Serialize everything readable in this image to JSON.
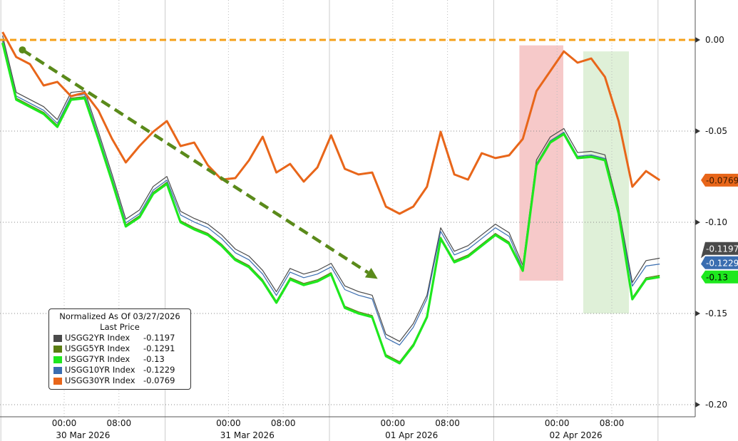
{
  "chart_data": {
    "type": "line",
    "title": "",
    "y_axis": {
      "position": "right",
      "ticks": [
        0.0,
        -0.05,
        -0.1,
        -0.15,
        -0.2
      ],
      "tick_labels": [
        "0.00",
        "-0.05",
        "-0.10",
        "-0.15",
        "-0.20"
      ],
      "ylim": [
        -0.205,
        0.01
      ]
    },
    "x_axis": {
      "time_labels": [
        {
          "t": "2026-03-30 00:00",
          "label": "00:00"
        },
        {
          "t": "2026-03-30 08:00",
          "label": "08:00"
        },
        {
          "t": "2026-03-31 00:00",
          "label": "00:00"
        },
        {
          "t": "2026-03-31 08:00",
          "label": "08:00"
        },
        {
          "t": "2026-04-01 00:00",
          "label": "00:00"
        },
        {
          "t": "2026-04-01 08:00",
          "label": "08:00"
        },
        {
          "t": "2026-04-02 00:00",
          "label": "00:00"
        },
        {
          "t": "2026-04-02 08:00",
          "label": "08:00"
        }
      ],
      "date_labels": [
        "30 Mar 2026",
        "31 Mar 2026",
        "01 Apr 2026",
        "02 Apr 2026"
      ],
      "xlim": [
        "2026-03-29 14:37",
        "2026-04-02 19:00"
      ]
    },
    "grid": true,
    "legend": {
      "placement": "bottom-left",
      "title": "Normalized As Of 03/27/2026",
      "subtitle": "Last Price",
      "entries": [
        {
          "name": "USGG2YR Index",
          "value": "-0.1197"
        },
        {
          "name": "USGG5YR Index",
          "value": "-0.1291"
        },
        {
          "name": "USGG7YR Index",
          "value": "-0.13"
        },
        {
          "name": "USGG10YR Index",
          "value": "-0.1229"
        },
        {
          "name": "USGG30YR Index",
          "value": "-0.0769"
        }
      ]
    },
    "x": [
      "2026-03-29 15:00",
      "2026-03-29 17:00",
      "2026-03-29 19:00",
      "2026-03-29 21:00",
      "2026-03-29 23:00",
      "2026-03-30 01:00",
      "2026-03-30 03:00",
      "2026-03-30 05:00",
      "2026-03-30 07:00",
      "2026-03-30 09:00",
      "2026-03-30 11:00",
      "2026-03-30 13:00",
      "2026-03-30 15:00",
      "2026-03-30 17:00",
      "2026-03-30 19:00",
      "2026-03-30 21:00",
      "2026-03-30 23:00",
      "2026-03-31 01:00",
      "2026-03-31 03:00",
      "2026-03-31 05:00",
      "2026-03-31 07:00",
      "2026-03-31 09:00",
      "2026-03-31 11:00",
      "2026-03-31 13:00",
      "2026-03-31 15:00",
      "2026-03-31 17:00",
      "2026-03-31 19:00",
      "2026-03-31 21:00",
      "2026-03-31 23:00",
      "2026-04-01 01:00",
      "2026-04-01 03:00",
      "2026-04-01 05:00",
      "2026-04-01 07:00",
      "2026-04-01 09:00",
      "2026-04-01 11:00",
      "2026-04-01 13:00",
      "2026-04-01 15:00",
      "2026-04-01 17:00",
      "2026-04-01 19:00",
      "2026-04-01 21:00",
      "2026-04-01 23:00",
      "2026-04-02 01:00",
      "2026-04-02 03:00",
      "2026-04-02 05:00",
      "2026-04-02 07:00",
      "2026-04-02 09:00",
      "2026-04-02 11:00",
      "2026-04-02 13:00",
      "2026-04-02 15:00"
    ],
    "series": [
      {
        "name": "USGG2YR Index",
        "color": "#4a4a4a",
        "last": "-0.1197",
        "values": [
          0.0024,
          -0.0288,
          -0.0327,
          -0.0366,
          -0.0437,
          -0.0288,
          -0.028,
          -0.0503,
          -0.0737,
          -0.0983,
          -0.0933,
          -0.0804,
          -0.0749,
          -0.094,
          -0.0979,
          -0.101,
          -0.1069,
          -0.1147,
          -0.1186,
          -0.1264,
          -0.1381,
          -0.1253,
          -0.1284,
          -0.1264,
          -0.1225,
          -0.1349,
          -0.138,
          -0.14,
          -0.1614,
          -0.1653,
          -0.1556,
          -0.14,
          -0.103,
          -0.1159,
          -0.1128,
          -0.1069,
          -0.101,
          -0.1057,
          -0.1236,
          -0.0658,
          -0.0533,
          -0.0486,
          -0.0618,
          -0.0611,
          -0.063,
          -0.0923,
          -0.133,
          -0.121,
          -0.1197
        ]
      },
      {
        "name": "USGG5YR Index",
        "color": "#5a7d12",
        "last": "-0.1291",
        "values": [
          -0.0007,
          -0.0319,
          -0.0358,
          -0.0397,
          -0.0468,
          -0.0319,
          -0.0311,
          -0.0534,
          -0.0768,
          -0.1014,
          -0.0964,
          -0.0835,
          -0.078,
          -0.0991,
          -0.103,
          -0.1061,
          -0.112,
          -0.1198,
          -0.1237,
          -0.1315,
          -0.1432,
          -0.1304,
          -0.1335,
          -0.1315,
          -0.1276,
          -0.146,
          -0.1491,
          -0.1511,
          -0.1725,
          -0.1764,
          -0.1667,
          -0.1511,
          -0.1081,
          -0.121,
          -0.1179,
          -0.112,
          -0.1061,
          -0.1108,
          -0.1257,
          -0.0679,
          -0.0554,
          -0.0507,
          -0.0639,
          -0.0632,
          -0.0651,
          -0.0944,
          -0.1413,
          -0.1304,
          -0.1291
        ]
      },
      {
        "name": "USGG10YR Index",
        "color": "#3a6db0",
        "last": "-0.1229",
        "values": [
          0.0004,
          -0.0308,
          -0.0347,
          -0.0386,
          -0.0457,
          -0.0308,
          -0.03,
          -0.0523,
          -0.0757,
          -0.1003,
          -0.0953,
          -0.0824,
          -0.0769,
          -0.096,
          -0.0999,
          -0.103,
          -0.1089,
          -0.1167,
          -0.1206,
          -0.1284,
          -0.1401,
          -0.1273,
          -0.1304,
          -0.1284,
          -0.1245,
          -0.1369,
          -0.14,
          -0.142,
          -0.1634,
          -0.1673,
          -0.1576,
          -0.142,
          -0.105,
          -0.1179,
          -0.1148,
          -0.1089,
          -0.103,
          -0.1077,
          -0.1256,
          -0.0678,
          -0.0553,
          -0.0506,
          -0.0638,
          -0.0631,
          -0.065,
          -0.0943,
          -0.135,
          -0.124,
          -0.1229
        ]
      },
      {
        "name": "USGG7YR Index",
        "color": "#1ee81e",
        "last": "-0.13",
        "values": [
          -0.0016,
          -0.0328,
          -0.0367,
          -0.0406,
          -0.0477,
          -0.0328,
          -0.032,
          -0.0543,
          -0.0777,
          -0.1023,
          -0.0973,
          -0.0844,
          -0.0789,
          -0.1,
          -0.1039,
          -0.107,
          -0.1129,
          -0.1207,
          -0.1246,
          -0.1324,
          -0.1441,
          -0.1313,
          -0.1344,
          -0.1324,
          -0.1285,
          -0.1469,
          -0.15,
          -0.152,
          -0.1734,
          -0.1773,
          -0.1676,
          -0.152,
          -0.109,
          -0.1219,
          -0.1188,
          -0.1129,
          -0.107,
          -0.1117,
          -0.1266,
          -0.0688,
          -0.0563,
          -0.0516,
          -0.0648,
          -0.0641,
          -0.066,
          -0.0953,
          -0.1422,
          -0.1313,
          -0.13
        ]
      },
      {
        "name": "USGG30YR Index",
        "color": "#e8661a",
        "last": "-0.0769",
        "values": [
          0.0043,
          -0.0094,
          -0.0133,
          -0.025,
          -0.023,
          -0.0309,
          -0.0289,
          -0.0387,
          -0.0543,
          -0.0672,
          -0.0582,
          -0.0504,
          -0.0445,
          -0.0582,
          -0.0563,
          -0.0688,
          -0.0766,
          -0.0758,
          -0.066,
          -0.0531,
          -0.0727,
          -0.068,
          -0.0777,
          -0.0699,
          -0.0523,
          -0.0707,
          -0.0738,
          -0.0727,
          -0.0914,
          -0.0953,
          -0.0914,
          -0.0805,
          -0.0504,
          -0.0738,
          -0.0766,
          -0.0621,
          -0.0648,
          -0.0633,
          -0.0543,
          -0.0281,
          -0.0172,
          -0.0063,
          -0.0125,
          -0.0102,
          -0.0203,
          -0.0445,
          -0.0805,
          -0.0719,
          -0.0769
        ]
      }
    ],
    "annotations": {
      "zero_line": {
        "value": 0.0,
        "color": "#f5a019",
        "style": "dashed"
      },
      "trend_arrow": {
        "from": [
          "2026-03-29 17:54",
          -0.0055
        ],
        "to": [
          "2026-03-31 21:48",
          -0.131
        ],
        "color": "#5a8a1a",
        "style": "dashed"
      },
      "highlight_red": {
        "from": "2026-04-01 18:30",
        "to": "2026-04-02 00:55",
        "ymax": -0.003,
        "ymin": -0.132,
        "color": "#f6c9c9"
      },
      "highlight_green": {
        "from": "2026-04-02 03:50",
        "to": "2026-04-02 10:30",
        "ymax": -0.0063,
        "ymin": -0.15,
        "color": "#dff0d8"
      }
    }
  }
}
